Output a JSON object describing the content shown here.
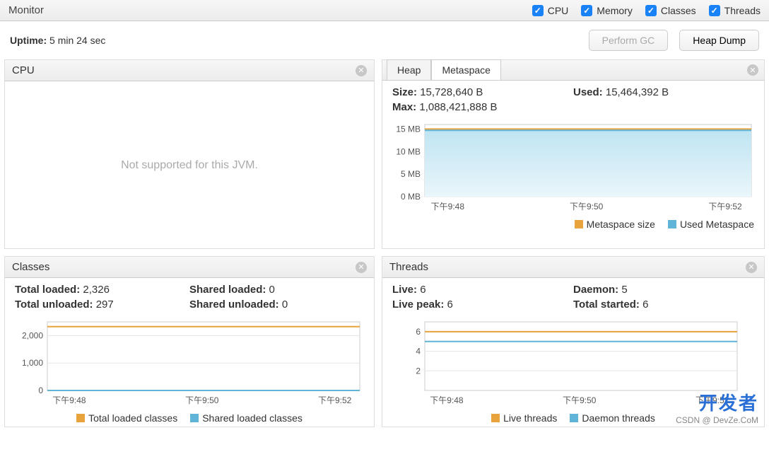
{
  "header": {
    "title": "Monitor",
    "checkboxes": [
      {
        "label": "CPU",
        "checked": true
      },
      {
        "label": "Memory",
        "checked": true
      },
      {
        "label": "Classes",
        "checked": true
      },
      {
        "label": "Threads",
        "checked": true
      }
    ]
  },
  "toolbar": {
    "uptime_label": "Uptime:",
    "uptime_value": "5 min 24 sec",
    "btn_gc": "Perform GC",
    "btn_dump": "Heap Dump"
  },
  "colors": {
    "orange": "#e8a33d",
    "blue_line": "#5fb4d8",
    "blue_fill_top": "#cfeaf5",
    "blue_fill_bottom": "#e9f5fa",
    "gridline": "#e5e5e5",
    "axis_text": "#555555",
    "checkbox_bg": "#1a82f7"
  },
  "cpu_panel": {
    "title": "CPU",
    "message": "Not supported for this JVM."
  },
  "memory_panel": {
    "tabs": {
      "heap": "Heap",
      "metaspace": "Metaspace",
      "active": "metaspace"
    },
    "stats": {
      "size_label": "Size:",
      "size_value": "15,728,640 B",
      "used_label": "Used:",
      "used_value": "15,464,392 B",
      "max_label": "Max:",
      "max_value": "1,088,421,888 B"
    },
    "chart": {
      "type": "area",
      "ylim": [
        0,
        16
      ],
      "yticks": [
        0,
        5,
        10,
        15
      ],
      "ytick_labels": [
        "0 MB",
        "5 MB",
        "10 MB",
        "15 MB"
      ],
      "xticks": [
        "下午9:48",
        "下午9:50",
        "下午9:52"
      ],
      "series": {
        "size_mb": 15.0,
        "used_mb": 14.7
      },
      "plot_bg": "#ffffff",
      "fill_gradient": [
        "#bfe4f2",
        "#eaf6fb"
      ],
      "size_line_color": "#e8a33d",
      "used_line_color": "#5fb4d8",
      "line_width": 2
    },
    "legend": [
      {
        "label": "Metaspace size",
        "color": "#e8a33d"
      },
      {
        "label": "Used Metaspace",
        "color": "#5fb4d8"
      }
    ]
  },
  "classes_panel": {
    "title": "Classes",
    "stats": {
      "total_loaded_label": "Total loaded:",
      "total_loaded_value": "2,326",
      "shared_loaded_label": "Shared loaded:",
      "shared_loaded_value": "0",
      "total_unloaded_label": "Total unloaded:",
      "total_unloaded_value": "297",
      "shared_unloaded_label": "Shared unloaded:",
      "shared_unloaded_value": "0"
    },
    "chart": {
      "type": "line",
      "ylim": [
        0,
        2500
      ],
      "yticks": [
        0,
        1000,
        2000
      ],
      "ytick_labels": [
        "0",
        "1,000",
        "2,000"
      ],
      "xticks": [
        "下午9:48",
        "下午9:50",
        "下午9:52"
      ],
      "total_loaded_color": "#e8a33d",
      "shared_loaded_color": "#5fb4d8",
      "total_loaded_value": 2326,
      "shared_loaded_value": 0,
      "line_width": 2
    },
    "legend": [
      {
        "label": "Total loaded classes",
        "color": "#e8a33d"
      },
      {
        "label": "Shared loaded classes",
        "color": "#5fb4d8"
      }
    ]
  },
  "threads_panel": {
    "title": "Threads",
    "stats": {
      "live_label": "Live:",
      "live_value": "6",
      "daemon_label": "Daemon:",
      "daemon_value": "5",
      "peak_label": "Live peak:",
      "peak_value": "6",
      "started_label": "Total started:",
      "started_value": "6"
    },
    "chart": {
      "type": "line",
      "ylim": [
        0,
        7
      ],
      "yticks": [
        2,
        4,
        6
      ],
      "ytick_labels": [
        "2",
        "4",
        "6"
      ],
      "xticks": [
        "下午9:48",
        "下午9:50",
        "下午9:52"
      ],
      "live_color": "#e8a33d",
      "daemon_color": "#5fb4d8",
      "live_value": 6,
      "daemon_value": 5,
      "line_width": 2
    },
    "legend": [
      {
        "label": "Live threads",
        "color": "#e8a33d"
      },
      {
        "label": "Daemon threads",
        "color": "#5fb4d8"
      }
    ]
  },
  "watermark": {
    "line1": "开发者",
    "line2": "CSDN @ DevZe.CoM"
  }
}
